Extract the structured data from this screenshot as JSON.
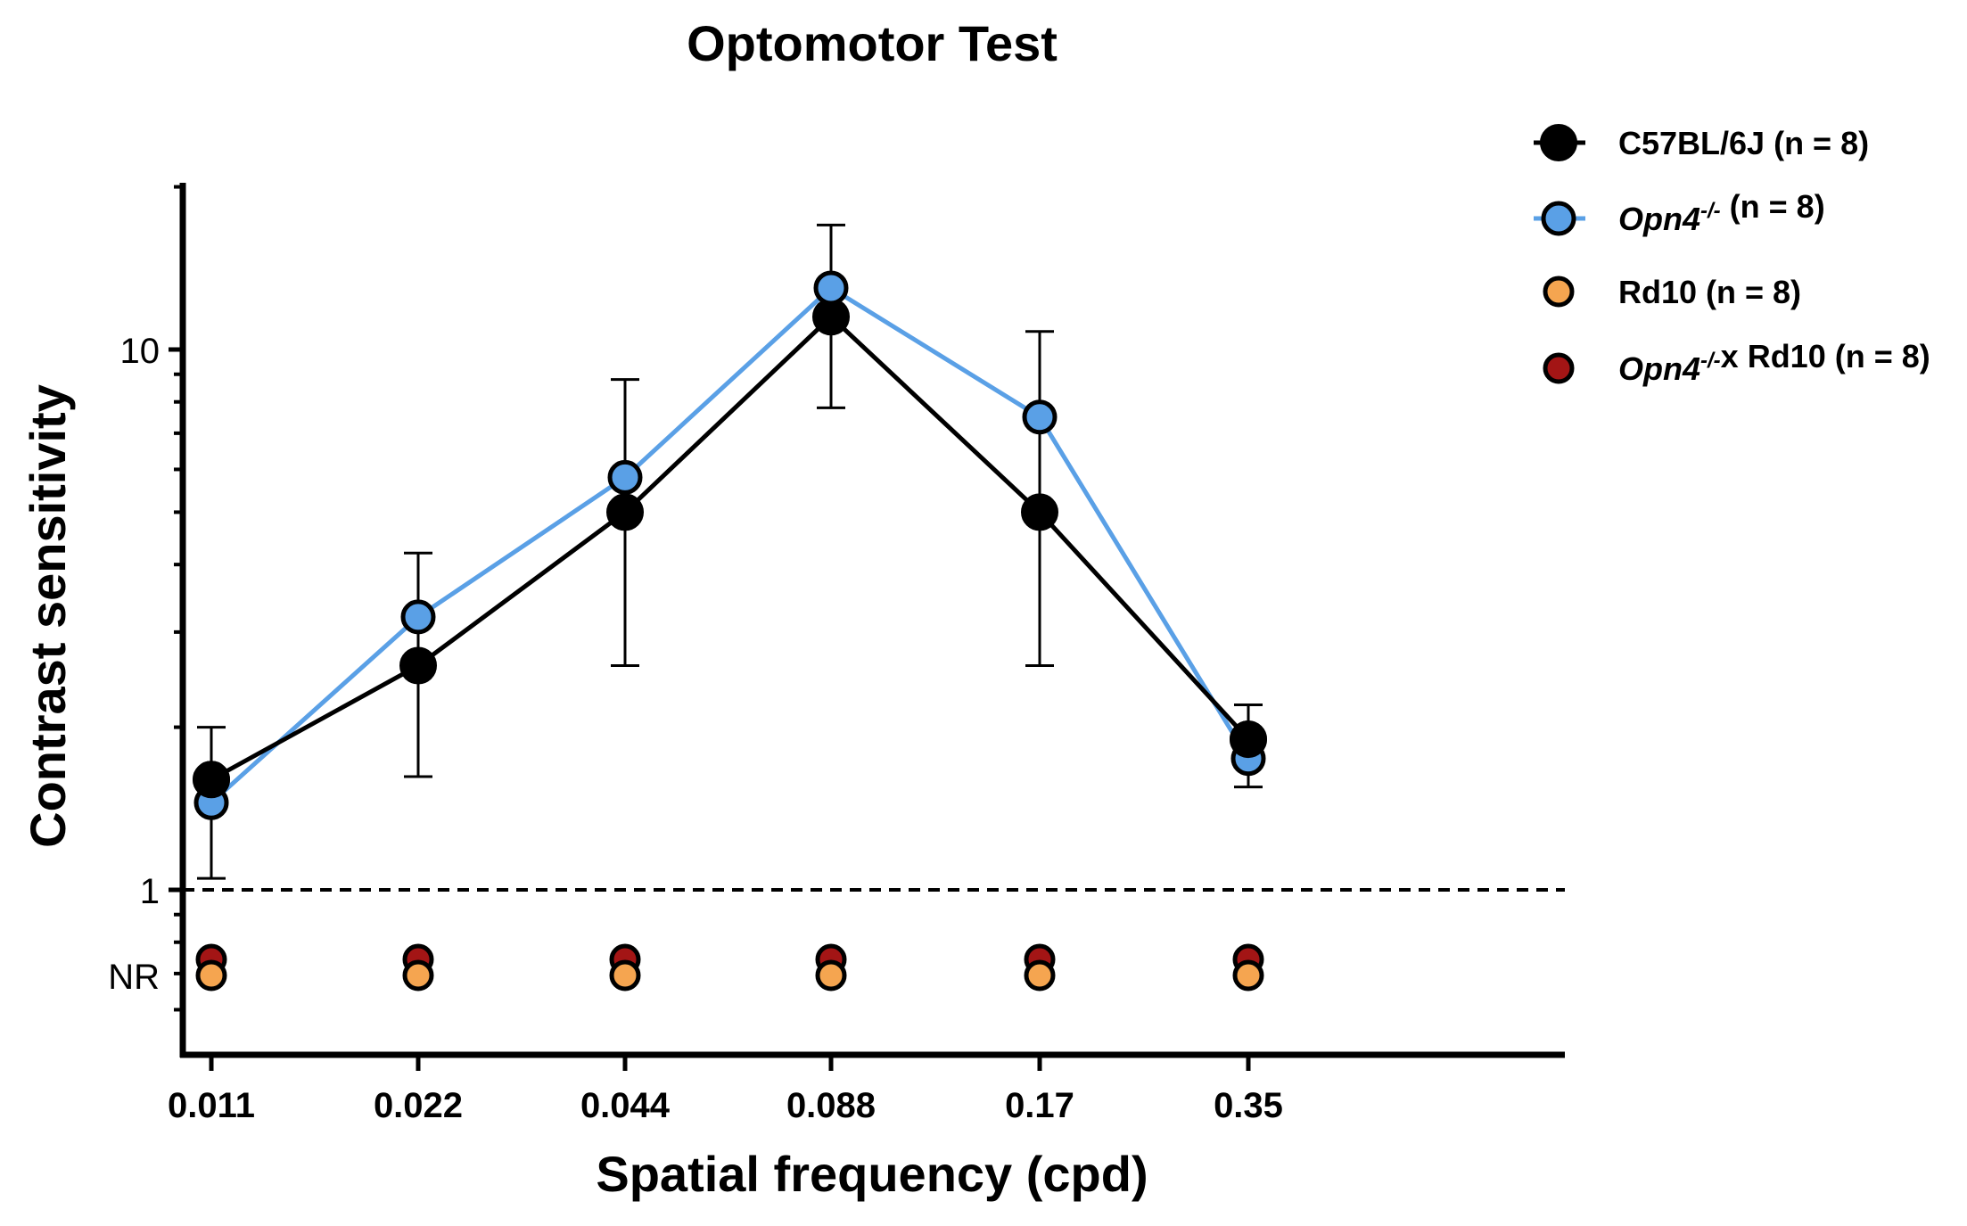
{
  "chart_data": {
    "type": "line",
    "title": "Optomotor Test",
    "xlabel": "Spatial frequency (cpd)",
    "ylabel": "Contrast sensitivity",
    "categories": [
      "0.011",
      "0.022",
      "0.044",
      "0.088",
      "0.17",
      "0.35"
    ],
    "yscale": "log",
    "ylim": [
      0.5,
      20
    ],
    "yticks": [
      {
        "value": 1,
        "label": "1"
      },
      {
        "value": 10,
        "label": "10"
      }
    ],
    "nr_label": "NR",
    "reference_line": {
      "y": 1,
      "style": "dashed"
    },
    "legend_position": "top-right",
    "series": [
      {
        "name": "C57BL/6J (n = 8)",
        "name_parts": [
          {
            "text": "C57BL/6J (n = 8)",
            "italic": false
          }
        ],
        "color": "#000000",
        "line_color": "#000000",
        "legend_line": "dashed",
        "connected": true,
        "values": [
          1.6,
          2.6,
          5.0,
          11.5,
          5.0,
          1.9
        ],
        "error": [
          [
            1.05,
            2.0
          ],
          [
            1.62,
            4.2
          ],
          [
            2.6,
            8.8
          ],
          [
            7.8,
            17.0
          ],
          [
            2.6,
            10.8
          ],
          [
            1.55,
            2.2
          ]
        ]
      },
      {
        "name": "Opn4-/- (n = 8)",
        "name_parts": [
          {
            "text": "Opn4",
            "italic": true
          },
          {
            "text": "-/-",
            "italic": true,
            "sup": true
          },
          {
            "text": " (n = 8)",
            "italic": false
          }
        ],
        "color": "#5aa0e6",
        "line_color": "#5aa0e6",
        "legend_line": "solid",
        "connected": true,
        "values": [
          1.45,
          3.2,
          5.8,
          13.0,
          7.5,
          1.75
        ],
        "error": null
      },
      {
        "name": "Rd10 (n = 8)",
        "name_parts": [
          {
            "text": "Rd10 (n = 8)",
            "italic": false
          }
        ],
        "color": "#f5a550",
        "line_color": null,
        "legend_line": "none",
        "connected": false,
        "values": [
          "NR",
          "NR",
          "NR",
          "NR",
          "NR",
          "NR"
        ],
        "error": null
      },
      {
        "name": "Opn4-/- x Rd10 (n = 8)",
        "name_parts": [
          {
            "text": "Opn4",
            "italic": true
          },
          {
            "text": "-/-",
            "italic": true,
            "sup": true
          },
          {
            "text": "x Rd10 (n = 8)",
            "italic": false
          }
        ],
        "color": "#a31515",
        "line_color": null,
        "legend_line": "none",
        "connected": false,
        "values": [
          "NR",
          "NR",
          "NR",
          "NR",
          "NR",
          "NR"
        ],
        "error": null
      }
    ]
  }
}
